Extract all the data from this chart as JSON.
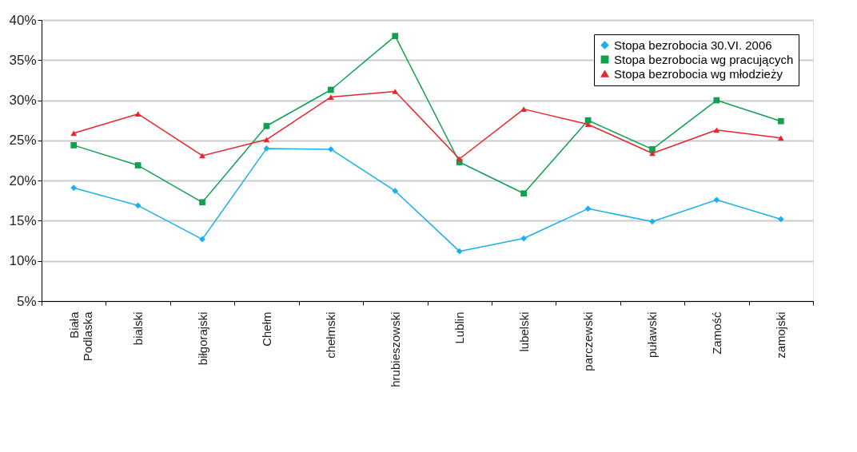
{
  "chart_data": {
    "type": "line",
    "categories": [
      "Biała Podlaska",
      "bialski",
      "biłgorajski",
      "Chełm",
      "chełmski",
      "hrubieszowski",
      "Lublin",
      "lubelski",
      "parczewski",
      "puławski",
      "Zamość",
      "zamojski"
    ],
    "series": [
      {
        "name": "Stopa bezrobocia 30.VI. 2006",
        "color": "#1ab0ea",
        "marker": "diamond",
        "values": [
          19.1,
          16.9,
          12.7,
          24.0,
          23.9,
          18.7,
          11.2,
          12.8,
          16.5,
          14.9,
          17.6,
          15.2
        ]
      },
      {
        "name": "Stopa bezrobocia wg pracujących",
        "color": "#10a050",
        "marker": "square",
        "values": [
          24.4,
          21.9,
          17.3,
          26.8,
          31.3,
          38.0,
          22.3,
          18.4,
          27.5,
          23.9,
          30.0,
          27.4
        ]
      },
      {
        "name": "Stopa bezrobocia wg młodzieży",
        "color": "#e8252e",
        "marker": "triangle",
        "values": [
          25.9,
          28.3,
          23.1,
          25.1,
          30.4,
          31.1,
          22.7,
          28.9,
          27.0,
          23.4,
          26.3,
          25.3
        ]
      }
    ],
    "ylim": [
      5,
      40
    ],
    "yticks": [
      {
        "value": 5,
        "label": "5%"
      },
      {
        "value": 10,
        "label": "10%"
      },
      {
        "value": 15,
        "label": "15%"
      },
      {
        "value": 20,
        "label": "20%"
      },
      {
        "value": 25,
        "label": "25%"
      },
      {
        "value": 30,
        "label": "30%"
      },
      {
        "value": 35,
        "label": "35%"
      },
      {
        "value": 40,
        "label": "40%"
      }
    ],
    "grid": "y",
    "legend": "top right",
    "line_style": "solid"
  }
}
